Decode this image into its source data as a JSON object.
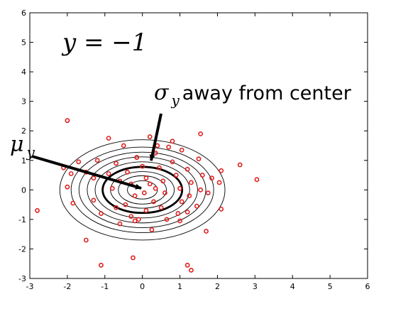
{
  "chart_data": {
    "type": "scatter",
    "title": "",
    "xlabel": "",
    "ylabel": "",
    "xlim": [
      -3,
      6
    ],
    "ylim": [
      -3,
      6
    ],
    "xticks": [
      -3,
      -2,
      -1,
      0,
      1,
      2,
      3,
      4,
      5,
      6
    ],
    "yticks": [
      -3,
      -2,
      -1,
      0,
      1,
      2,
      3,
      4,
      5,
      6
    ],
    "grid": false,
    "class_label": "y = −1",
    "mean": [
      0,
      0
    ],
    "contours": {
      "center": [
        0,
        0
      ],
      "radii": [
        [
          0.4,
          0.31
        ],
        [
          0.64,
          0.48
        ],
        [
          0.85,
          0.62
        ],
        [
          1.06,
          0.78
        ],
        [
          1.26,
          0.95
        ],
        [
          1.47,
          1.12
        ],
        [
          1.69,
          1.28
        ],
        [
          1.9,
          1.45
        ],
        [
          2.2,
          1.7
        ]
      ],
      "highlighted_index": 3
    },
    "point_color": "#e02020",
    "points": [
      [
        -2.8,
        -0.7
      ],
      [
        -2.0,
        2.35
      ],
      [
        -2.1,
        0.75
      ],
      [
        -1.9,
        0.55
      ],
      [
        -2.0,
        0.1
      ],
      [
        -1.85,
        -0.45
      ],
      [
        -1.7,
        0.95
      ],
      [
        -1.5,
        0.6
      ],
      [
        -1.3,
        0.4
      ],
      [
        -1.2,
        1.0
      ],
      [
        -1.3,
        -0.35
      ],
      [
        -1.5,
        -1.7
      ],
      [
        -1.1,
        -0.8
      ],
      [
        -0.9,
        1.75
      ],
      [
        -0.9,
        0.55
      ],
      [
        -0.8,
        0.05
      ],
      [
        -0.7,
        -0.6
      ],
      [
        -0.6,
        -1.15
      ],
      [
        -1.1,
        -2.55
      ],
      [
        -0.25,
        -2.3
      ],
      [
        -0.7,
        0.9
      ],
      [
        -0.5,
        1.5
      ],
      [
        -0.4,
        0.6
      ],
      [
        -0.3,
        0.2
      ],
      [
        -0.2,
        -0.2
      ],
      [
        -0.45,
        -0.5
      ],
      [
        -0.3,
        -0.9
      ],
      [
        -0.1,
        -1.0
      ],
      [
        -0.15,
        1.1
      ],
      [
        0.0,
        0.8
      ],
      [
        0.1,
        0.4
      ],
      [
        0.05,
        -0.1
      ],
      [
        0.2,
        0.2
      ],
      [
        0.3,
        -0.4
      ],
      [
        0.1,
        -0.7
      ],
      [
        0.25,
        -1.35
      ],
      [
        0.2,
        1.8
      ],
      [
        0.35,
        1.25
      ],
      [
        0.45,
        0.75
      ],
      [
        0.55,
        0.3
      ],
      [
        0.6,
        -0.1
      ],
      [
        0.5,
        -0.6
      ],
      [
        0.65,
        -1.0
      ],
      [
        0.8,
        0.95
      ],
      [
        0.9,
        0.5
      ],
      [
        1.0,
        0.05
      ],
      [
        1.05,
        -0.4
      ],
      [
        0.95,
        -0.8
      ],
      [
        0.7,
        1.45
      ],
      [
        1.05,
        1.35
      ],
      [
        1.2,
        0.7
      ],
      [
        1.3,
        0.25
      ],
      [
        1.25,
        -0.2
      ],
      [
        1.2,
        -0.75
      ],
      [
        1.5,
        1.05
      ],
      [
        1.6,
        0.5
      ],
      [
        1.55,
        0.0
      ],
      [
        1.45,
        -0.55
      ],
      [
        1.75,
        -0.1
      ],
      [
        1.85,
        0.4
      ],
      [
        2.1,
        -0.65
      ],
      [
        2.1,
        0.65
      ],
      [
        2.05,
        0.25
      ],
      [
        2.6,
        0.85
      ],
      [
        3.05,
        0.35
      ],
      [
        1.2,
        -2.55
      ],
      [
        1.3,
        -2.72
      ],
      [
        1.7,
        -1.4
      ],
      [
        1.55,
        1.9
      ],
      [
        -0.15,
        1.1
      ],
      [
        0.4,
        1.5
      ],
      [
        -0.6,
        0.3
      ],
      [
        0.8,
        1.65
      ],
      [
        -0.2,
        -1.05
      ],
      [
        0.35,
        0.05
      ],
      [
        1.0,
        -1.05
      ]
    ],
    "annotations": [
      {
        "label": "σ",
        "subscript": "y",
        "suffix": " away from center"
      },
      {
        "label": "μ",
        "subscript": "y"
      }
    ]
  }
}
